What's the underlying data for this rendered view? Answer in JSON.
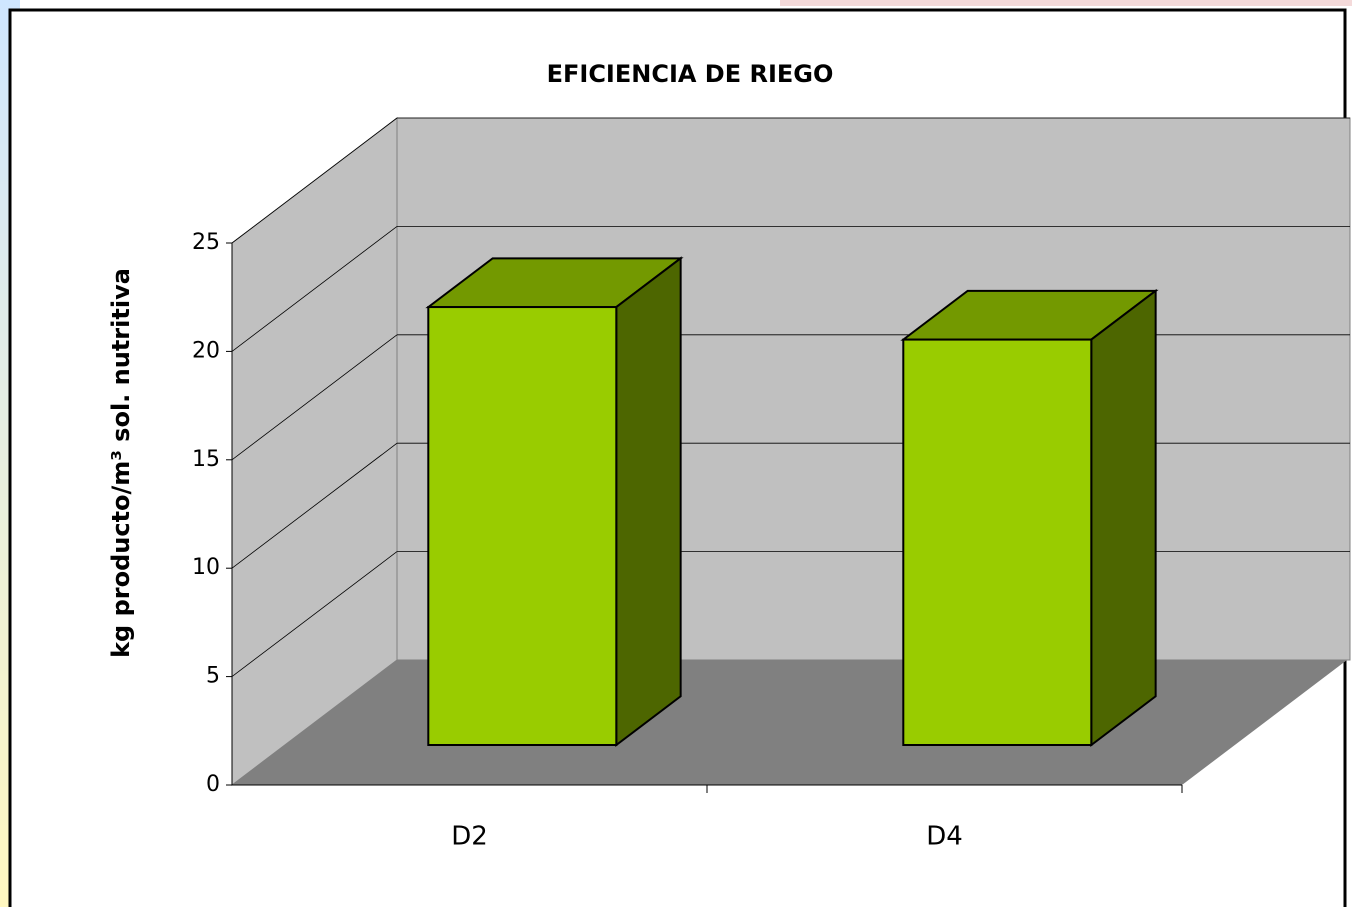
{
  "chart_data": {
    "type": "bar3d",
    "title": "EFICIENCIA DE RIEGO",
    "y_label": "kg producto/m³ sol. nutritiva",
    "categories": [
      "D2",
      "D4"
    ],
    "values": [
      20.2,
      18.7
    ],
    "color": "#99cc00",
    "ylim": [
      0,
      25
    ],
    "yticks": [
      0,
      5,
      10,
      15,
      20,
      25
    ],
    "grid": true
  }
}
